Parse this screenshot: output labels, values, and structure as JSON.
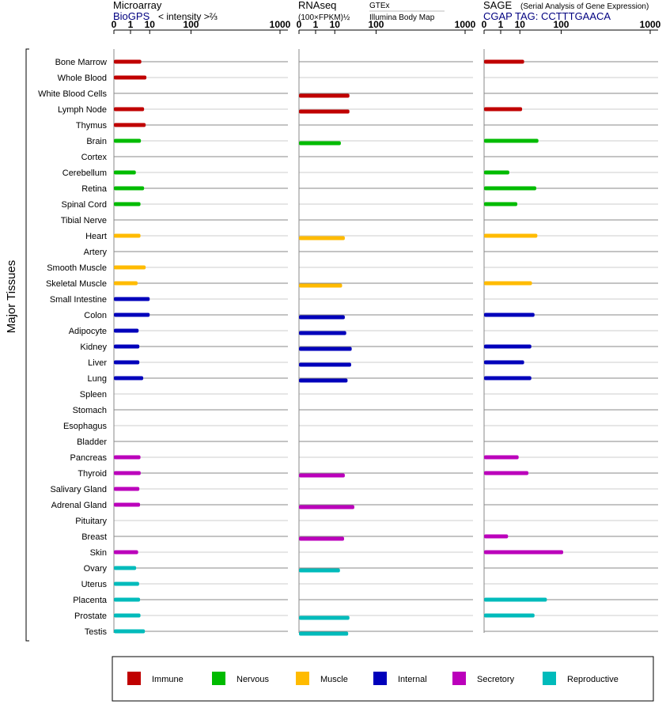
{
  "chart_data": {
    "type": "bar",
    "orientation": "horizontal",
    "y_group_label": "Major Tissues",
    "axis_ticks": [
      "0",
      "1",
      "10",
      "100",
      "1000"
    ],
    "axis_tick_values": [
      0,
      1,
      10,
      100,
      1000
    ],
    "xlim": [
      0,
      1000
    ],
    "scale": "power (cube-root style), values in native units",
    "tissues": [
      "Bone Marrow",
      "Whole Blood",
      "White Blood Cells",
      "Lymph Node",
      "Thymus",
      "Brain",
      "Cortex",
      "Cerebellum",
      "Retina",
      "Spinal Cord",
      "Tibial Nerve",
      "Heart",
      "Artery",
      "Smooth Muscle",
      "Skeletal Muscle",
      "Small Intestine",
      "Colon",
      "Adipocyte",
      "Kidney",
      "Liver",
      "Lung",
      "Spleen",
      "Stomach",
      "Esophagus",
      "Bladder",
      "Pancreas",
      "Thyroid",
      "Salivary Gland",
      "Adrenal Gland",
      "Pituitary",
      "Breast",
      "Skin",
      "Ovary",
      "Uterus",
      "Placenta",
      "Prostate",
      "Testis"
    ],
    "tissue_category": [
      "immune",
      "immune",
      "immune",
      "immune",
      "immune",
      "nervous",
      "nervous",
      "nervous",
      "nervous",
      "nervous",
      "nervous",
      "muscle",
      "muscle",
      "muscle",
      "muscle",
      "internal",
      "internal",
      "internal",
      "internal",
      "internal",
      "internal",
      "internal",
      "internal",
      "internal",
      "internal",
      "secretory",
      "secretory",
      "secretory",
      "secretory",
      "secretory",
      "secretory",
      "secretory",
      "reproductive",
      "reproductive",
      "reproductive",
      "reproductive",
      "reproductive"
    ],
    "panels": [
      {
        "id": "microarray",
        "title": "Microarray",
        "subtitle": "BioGPS",
        "unit_label": "< intensity >⅔",
        "values": [
          4.5,
          7.5,
          null,
          6,
          7,
          4.3,
          null,
          2.3,
          6,
          4.1,
          null,
          4.1,
          null,
          7,
          2.9,
          10,
          10,
          3.3,
          3.6,
          3.6,
          5.5,
          null,
          null,
          null,
          null,
          4.1,
          4.2,
          3.6,
          3.9,
          null,
          null,
          3.1,
          2.4,
          3.5,
          3.9,
          4.1,
          6.5
        ]
      },
      {
        "id": "rnaseq",
        "title": "RNAseq",
        "unit_label": "(100×FPKM)½",
        "series": [
          {
            "name": "GTEx",
            "values": [
              null,
              null,
              null,
              null,
              null,
              null,
              null,
              null,
              null,
              null,
              null,
              null,
              null,
              null,
              null,
              null,
              null,
              null,
              null,
              null,
              null,
              null,
              null,
              null,
              null,
              null,
              null,
              null,
              null,
              null,
              null,
              null,
              null,
              null,
              null,
              null,
              null
            ]
          },
          {
            "name": "Illumina Body Map",
            "values": [
              null,
              null,
              28,
              28,
              null,
              16,
              null,
              null,
              null,
              null,
              null,
              21,
              null,
              null,
              17.5,
              null,
              21,
              23,
              32,
              31,
              25,
              null,
              null,
              null,
              null,
              null,
              21,
              null,
              37,
              null,
              20,
              null,
              15,
              null,
              null,
              28,
              26
            ]
          }
        ],
        "legend": [
          "GTEx",
          "Illumina Body Map"
        ]
      },
      {
        "id": "sage",
        "title": "SAGE",
        "subtitle_note": "(Serial Analysis of Gene Expression)",
        "tag_label": "CGAP TAG: CCTTTGAACA",
        "values": [
          14,
          null,
          null,
          12,
          null,
          35,
          null,
          3.5,
          31,
          8,
          null,
          33,
          null,
          null,
          24,
          null,
          28,
          null,
          23,
          14,
          23,
          null,
          null,
          null,
          null,
          9,
          19,
          null,
          null,
          null,
          3,
          108,
          null,
          null,
          54,
          28,
          null
        ]
      }
    ],
    "legend": [
      {
        "key": "immune",
        "label": "Immune",
        "color": "#c00000"
      },
      {
        "key": "nervous",
        "label": "Nervous",
        "color": "#00bb00"
      },
      {
        "key": "muscle",
        "label": "Muscle",
        "color": "#ffbb00"
      },
      {
        "key": "internal",
        "label": "Internal",
        "color": "#0000bb"
      },
      {
        "key": "secretory",
        "label": "Secretory",
        "color": "#bb00bb"
      },
      {
        "key": "reproductive",
        "label": "Reproductive",
        "color": "#00bbbb"
      }
    ],
    "header_text_color": "#000080"
  }
}
